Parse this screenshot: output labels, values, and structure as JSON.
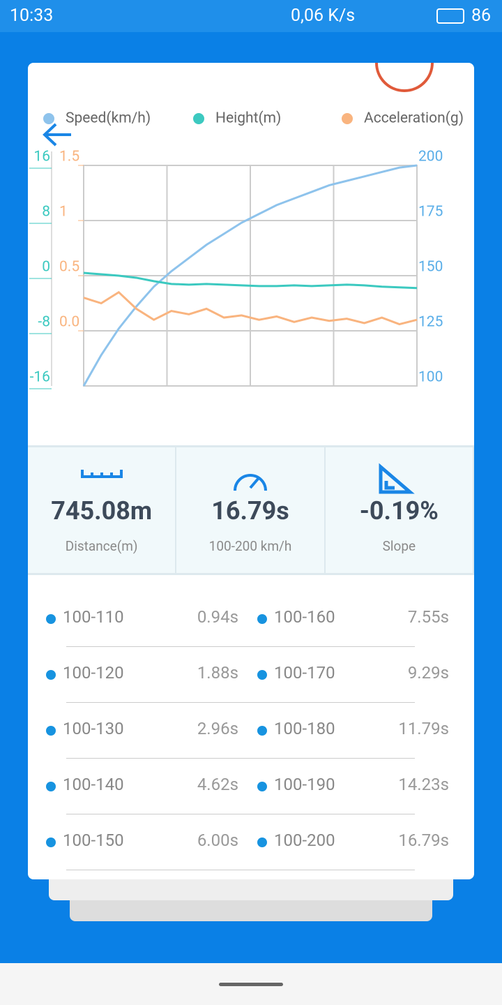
{
  "status_bar": {
    "time": "10:33",
    "speed": "0,06 K/s",
    "battery": "86"
  },
  "chart_data": {
    "type": "line",
    "series": [
      {
        "name": "Speed(km/h)",
        "color": "#8ec3ec",
        "axis": "y2",
        "values": [
          100,
          114,
          126,
          136,
          145,
          152,
          158,
          164,
          169,
          174,
          178,
          182,
          185,
          188,
          191,
          193,
          195,
          197,
          199,
          200
        ]
      },
      {
        "name": "Height(m)",
        "color": "#3cc9c0",
        "axis": "y",
        "values": [
          0.4,
          0.2,
          0,
          -0.3,
          -0.8,
          -1.2,
          -1.3,
          -1.2,
          -1.3,
          -1.4,
          -1.5,
          -1.5,
          -1.4,
          -1.5,
          -1.4,
          -1.3,
          -1.4,
          -1.6,
          -1.7,
          -1.8
        ]
      },
      {
        "name": "Acceleration(g)",
        "color": "#f9b47f",
        "axis": "y3",
        "values": [
          0.3,
          0.25,
          0.35,
          0.2,
          0.1,
          0.18,
          0.15,
          0.2,
          0.12,
          0.14,
          0.1,
          0.13,
          0.08,
          0.12,
          0.09,
          0.11,
          0.07,
          0.12,
          0.06,
          0.1
        ]
      }
    ],
    "ylim": [
      -16,
      16
    ],
    "yticks": [
      16,
      8,
      0,
      -8,
      -16
    ],
    "y3lim": [
      -0.5,
      1.5
    ],
    "y3ticks": [
      1.5,
      1,
      0.5,
      {
        "value": 0,
        "label": "0.0"
      }
    ],
    "y2lim": [
      100,
      200
    ],
    "y2ticks": [
      200,
      175,
      150,
      125,
      100
    ],
    "grid": true
  },
  "stats": [
    {
      "value": "745.08m",
      "label": "Distance(m)"
    },
    {
      "value": "16.79s",
      "label": "100-200 km/h"
    },
    {
      "value": "-0.19%",
      "label": "Slope"
    }
  ],
  "table": {
    "rows": [
      [
        "100-110",
        "0.94s",
        "100-160",
        "7.55s"
      ],
      [
        "100-120",
        "1.88s",
        "100-170",
        "9.29s"
      ],
      [
        "100-130",
        "2.96s",
        "100-180",
        "11.79s"
      ],
      [
        "100-140",
        "4.62s",
        "100-190",
        "14.23s"
      ],
      [
        "100-150",
        "6.00s",
        "100-200",
        "16.79s"
      ]
    ]
  }
}
